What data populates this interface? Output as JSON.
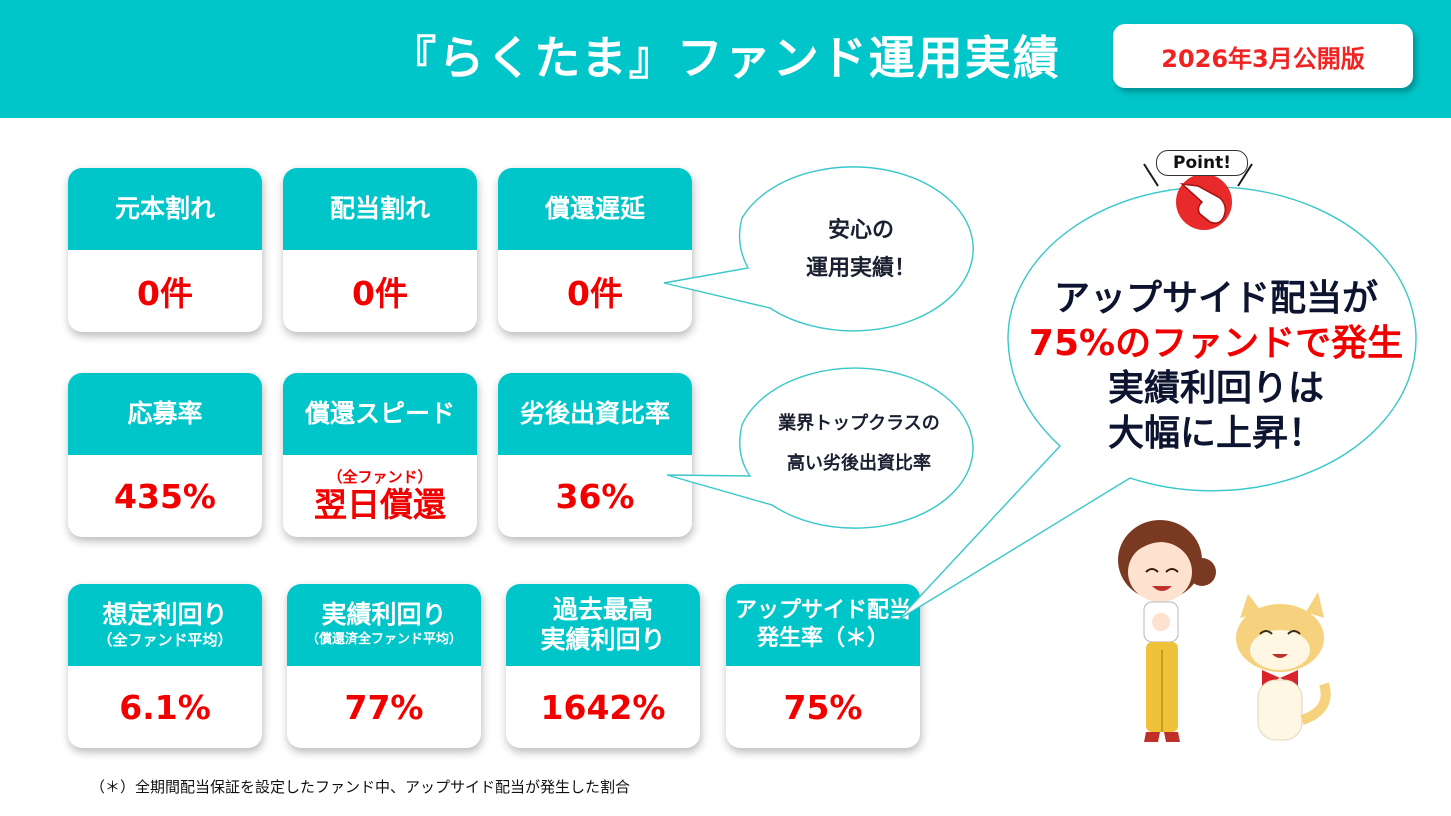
{
  "header": {
    "title": "『らくたま』ファンド運用実績",
    "edition": "2026年3月公開版"
  },
  "cards": {
    "principal_loss": {
      "label": "元本割れ",
      "value": "0件"
    },
    "dividend_loss": {
      "label": "配当割れ",
      "value": "0件"
    },
    "repayment_delay": {
      "label": "償還遅延",
      "value": "0件"
    },
    "application_rate": {
      "label": "応募率",
      "value": "435%"
    },
    "repayment_speed": {
      "label": "償還スピード",
      "value_note": "（全ファンド）",
      "value": "翌日償還"
    },
    "subordinate_ratio": {
      "label": "劣後出資比率",
      "value": "36%"
    },
    "expected_yield": {
      "label": "想定利回り",
      "sub": "（全ファンド平均）",
      "value": "6.1%"
    },
    "actual_yield": {
      "label": "実績利回り",
      "sub": "（償還済全ファンド平均）",
      "value": "77%"
    },
    "max_yield": {
      "label_line1": "過去最高",
      "label_line2": "実績利回り",
      "value": "1642%"
    },
    "upside_rate": {
      "label_line1": "アップサイド配当",
      "label_line2": "発生率（＊）",
      "value": "75%"
    }
  },
  "callouts": {
    "safe": {
      "line1": "安心の",
      "line2": "運用実績！"
    },
    "industry": {
      "line1": "業界トップクラスの",
      "line2": "高い劣後出資比率"
    }
  },
  "point": {
    "badge": "Point!",
    "line1": "アップサイド配当が",
    "line2": "75%のファンドで発生",
    "line3": "実績利回りは",
    "line4": "大幅に上昇！"
  },
  "footnote": "（＊）全期間配当保証を設定したファンド中、アップサイド配当が発生した割合",
  "colors": {
    "accent": "#00c5c9",
    "value_red": "#f20000",
    "edition_red": "#f02222"
  }
}
